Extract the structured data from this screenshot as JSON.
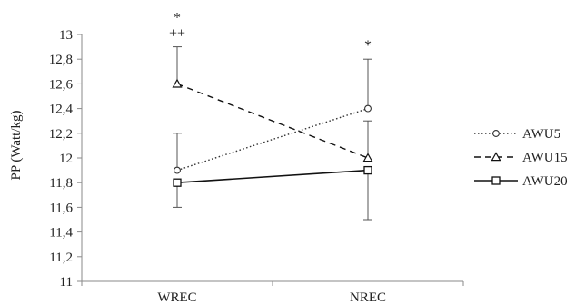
{
  "chart_data": {
    "type": "line",
    "title": "",
    "xlabel": "",
    "ylabel": "PP (Watt/kg)",
    "categories": [
      "WREC",
      "NREC"
    ],
    "ylim": [
      11,
      13
    ],
    "ytick_step": 0.2,
    "y_ticks": [
      "11",
      "11,2",
      "11,4",
      "11,6",
      "11,8",
      "12",
      "12,2",
      "12,4",
      "12,6",
      "12,8",
      "13"
    ],
    "grid": false,
    "legend_position": "right",
    "series": [
      {
        "name": "AWU5",
        "values": [
          11.9,
          12.4
        ],
        "error_upper": [
          12.2,
          12.8
        ],
        "error_lower": [
          null,
          null
        ],
        "line_style": "dotted",
        "marker": "circle",
        "color": "#333333"
      },
      {
        "name": "AWU15",
        "values": [
          12.6,
          12.0
        ],
        "error_upper": [
          12.9,
          12.3
        ],
        "error_lower": [
          null,
          null
        ],
        "line_style": "dashed",
        "marker": "triangle",
        "color": "#111111"
      },
      {
        "name": "AWU20",
        "values": [
          11.8,
          11.9
        ],
        "error_upper": [
          null,
          null
        ],
        "error_lower": [
          11.6,
          11.5
        ],
        "line_style": "solid",
        "marker": "square",
        "color": "#111111"
      }
    ],
    "annotations": [
      {
        "category": "WREC",
        "text": "*",
        "row": 0
      },
      {
        "category": "WREC",
        "text": "++",
        "row": 1
      },
      {
        "category": "NREC",
        "text": "*",
        "row": 1
      }
    ]
  }
}
